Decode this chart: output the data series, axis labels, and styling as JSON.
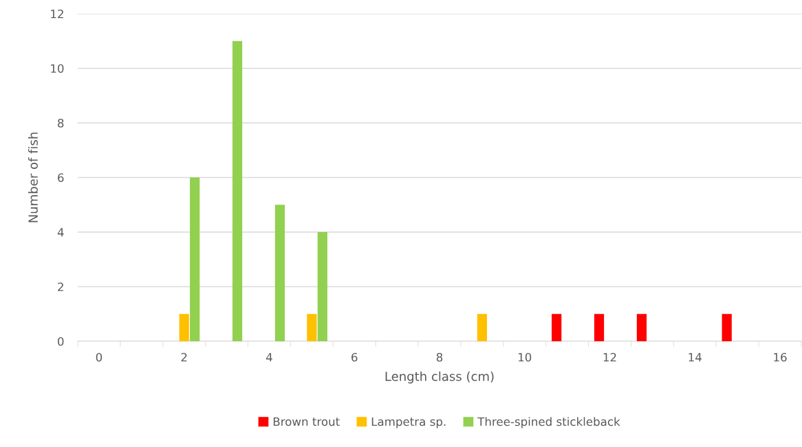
{
  "chart_data": {
    "type": "bar",
    "xlabel": "Length class (cm)",
    "ylabel": "Number of fish",
    "categories": [
      "0",
      null,
      "2",
      null,
      "4",
      null,
      "6",
      null,
      "8",
      null,
      "10",
      null,
      "12",
      null,
      "14",
      null,
      "16"
    ],
    "series": [
      {
        "name": "Brown trout",
        "color": "#ff0000",
        "values": [
          0,
          0,
          0,
          0,
          0,
          0,
          0,
          0,
          0,
          0,
          0,
          1,
          1,
          1,
          0,
          1,
          0
        ]
      },
      {
        "name": "Lampetra sp.",
        "color": "#ffc000",
        "values": [
          0,
          0,
          1,
          0,
          0,
          1,
          0,
          0,
          0,
          1,
          0,
          0,
          0,
          0,
          0,
          0,
          0
        ]
      },
      {
        "name": "Three-spined stickleback",
        "color": "#92d050",
        "values": [
          0,
          0,
          6,
          11,
          5,
          4,
          0,
          0,
          0,
          0,
          0,
          0,
          0,
          0,
          0,
          0,
          0
        ]
      }
    ],
    "ylim": [
      0,
      12
    ],
    "yticks": [
      0,
      2,
      4,
      6,
      8,
      10,
      12
    ],
    "grid": "y",
    "legend": "bottom"
  }
}
